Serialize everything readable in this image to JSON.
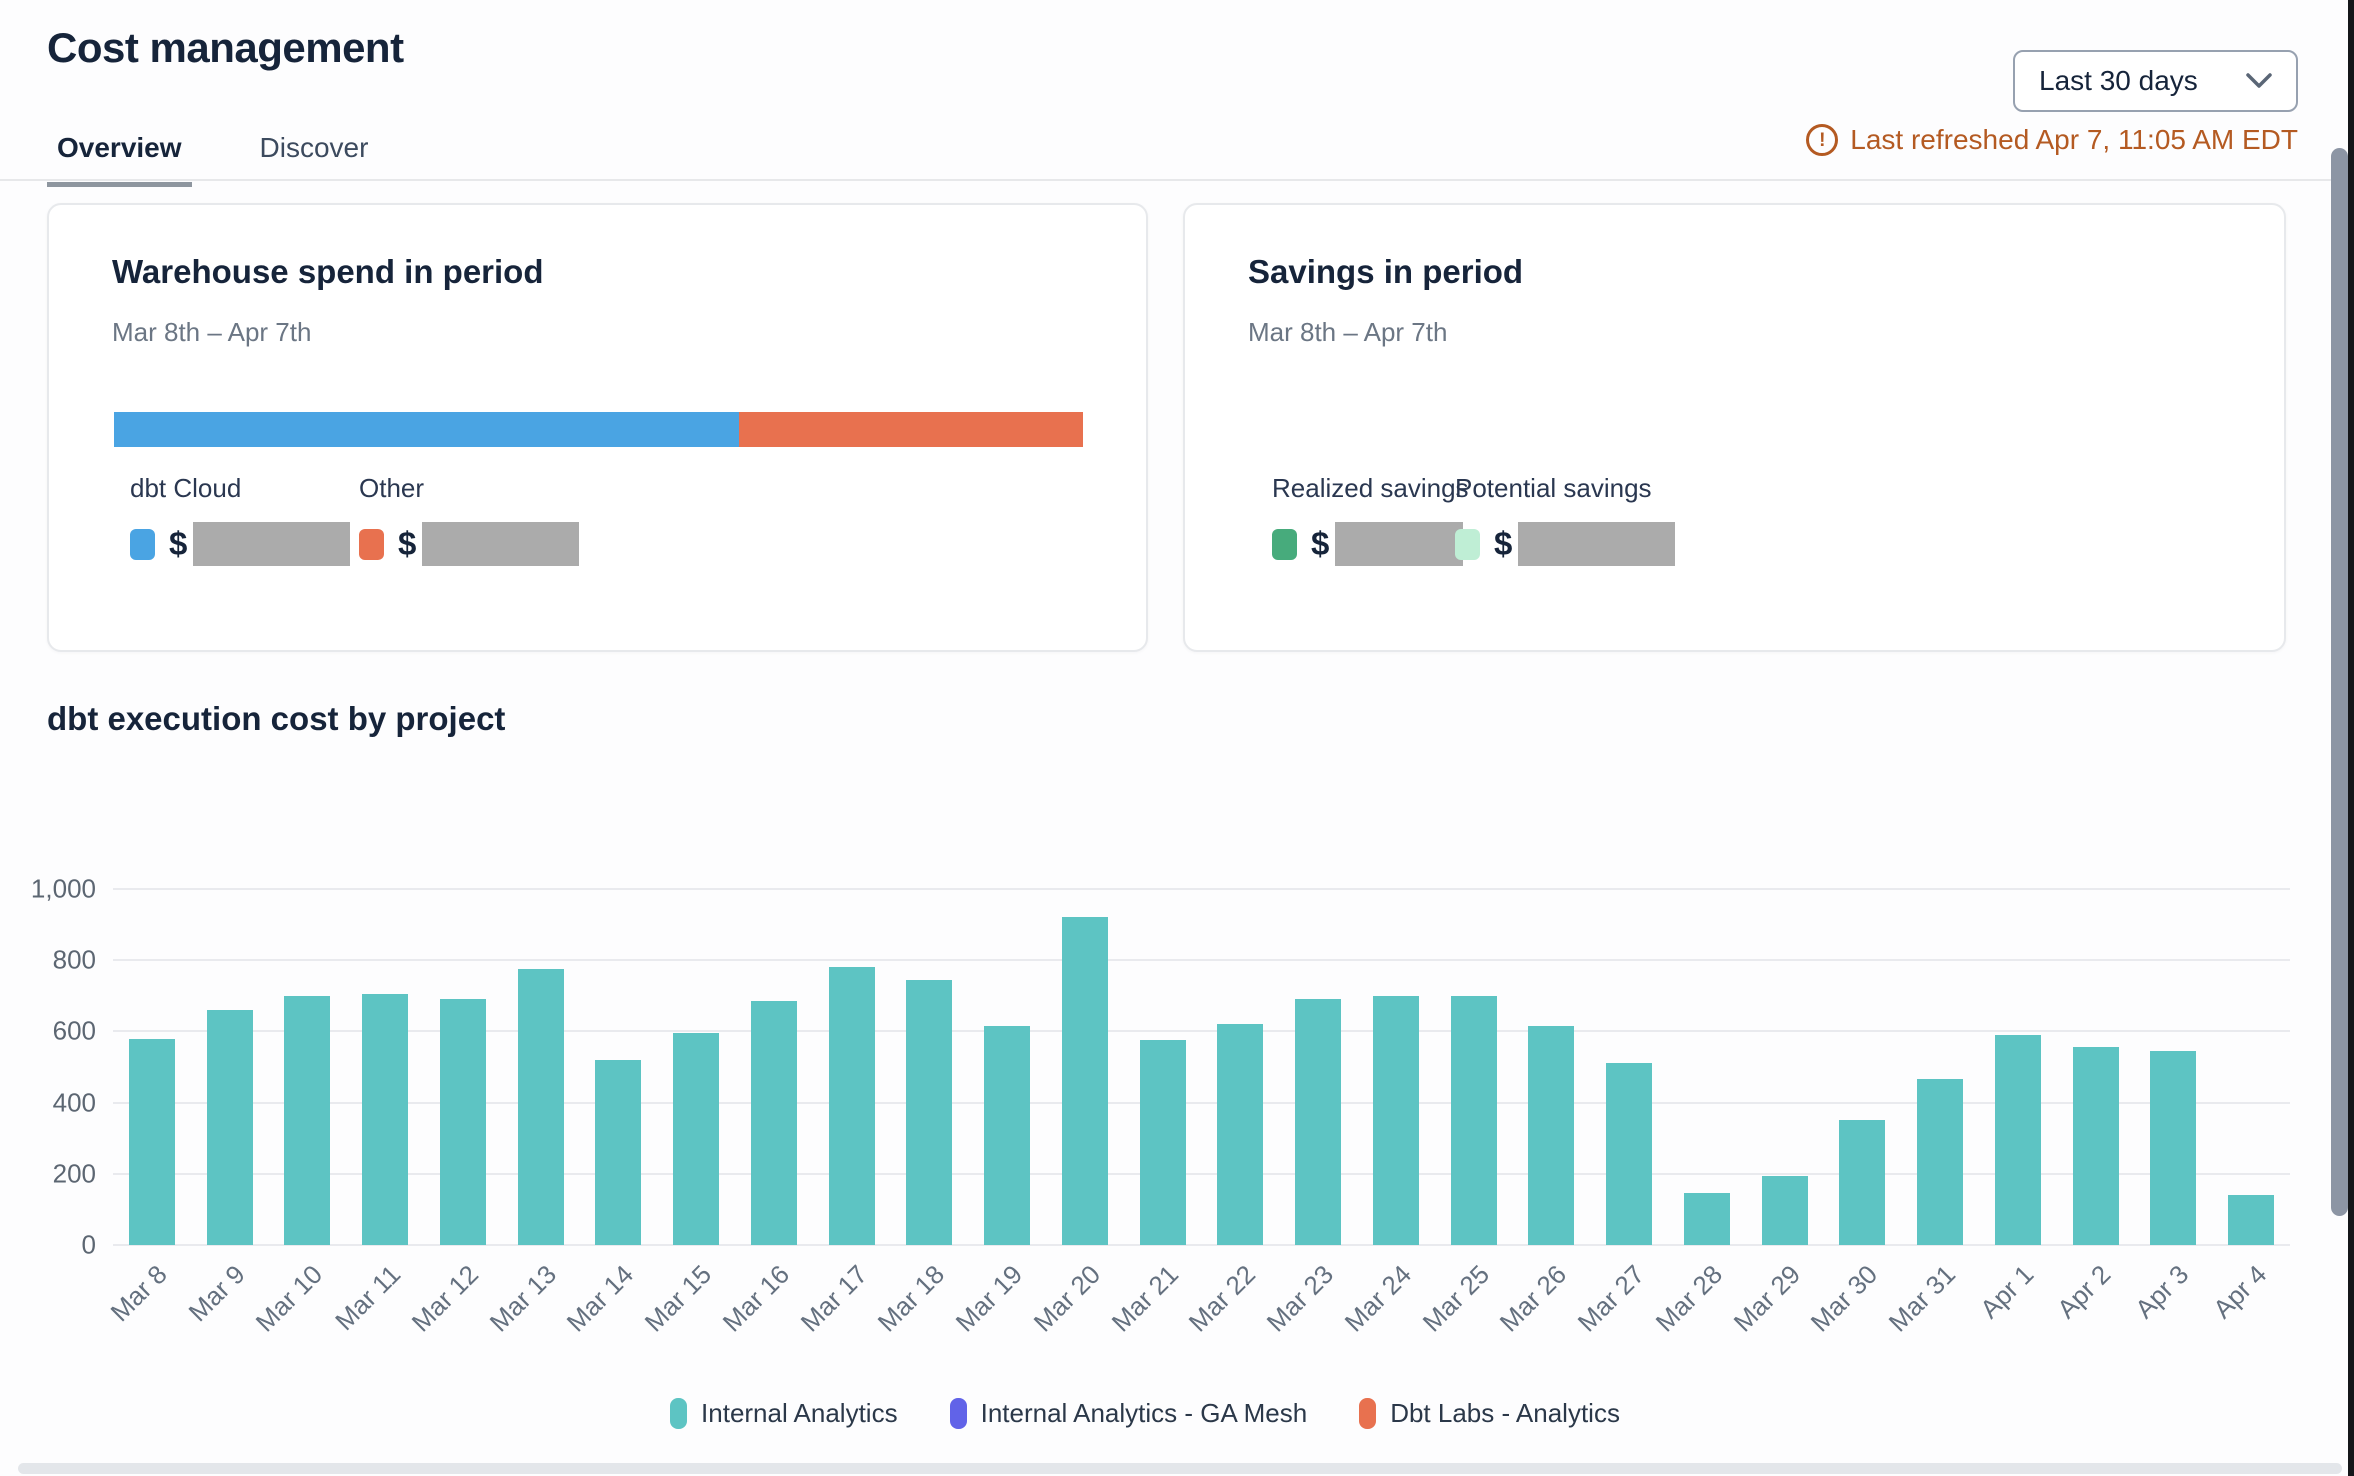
{
  "header": {
    "title": "Cost management",
    "tabs": [
      {
        "label": "Overview",
        "active": true
      },
      {
        "label": "Discover",
        "active": false
      }
    ],
    "date_range": {
      "value": "Last 30 days"
    },
    "last_refreshed": "Last refreshed Apr 7, 11:05 AM EDT",
    "refresh_color": "#b45a22"
  },
  "warehouse_card": {
    "title": "Warehouse spend in period",
    "period": "Mar 8th – Apr 7th",
    "currency_symbol": "$",
    "value_redacted": true,
    "bar_segments": [
      {
        "label": "dbt Cloud",
        "color": "#4aa4e3",
        "percent": 64.5
      },
      {
        "label": "Other",
        "color": "#e8714f",
        "percent": 35.5
      }
    ]
  },
  "savings_card": {
    "title": "Savings in period",
    "period": "Mar 8th – Apr 7th",
    "currency_symbol": "$",
    "value_redacted": true,
    "items": [
      {
        "label": "Realized savings",
        "color": "#47ab7c"
      },
      {
        "label": "Potential savings",
        "color": "#bfeed5"
      }
    ]
  },
  "chart_section": {
    "title": "dbt execution cost by project"
  },
  "chart_data": {
    "type": "bar",
    "title": "dbt execution cost by project",
    "categories": [
      "Mar 8",
      "Mar 9",
      "Mar 10",
      "Mar 11",
      "Mar 12",
      "Mar 13",
      "Mar 14",
      "Mar 15",
      "Mar 16",
      "Mar 17",
      "Mar 18",
      "Mar 19",
      "Mar 20",
      "Mar 21",
      "Mar 22",
      "Mar 23",
      "Mar 24",
      "Mar 25",
      "Mar 26",
      "Mar 27",
      "Mar 28",
      "Mar 29",
      "Mar 30",
      "Mar 31",
      "Apr 1",
      "Apr 2",
      "Apr 3",
      "Apr 4"
    ],
    "series": [
      {
        "name": "Internal Analytics",
        "color": "#5dc4c3",
        "values": [
          580,
          660,
          700,
          705,
          690,
          775,
          520,
          595,
          685,
          780,
          745,
          615,
          920,
          575,
          620,
          690,
          700,
          700,
          615,
          510,
          145,
          195,
          350,
          465,
          590,
          555,
          545,
          140
        ]
      },
      {
        "name": "Internal Analytics - GA Mesh",
        "color": "#6163e8",
        "values": [
          0,
          0,
          0,
          0,
          0,
          0,
          0,
          0,
          0,
          0,
          0,
          0,
          0,
          0,
          0,
          0,
          0,
          0,
          0,
          0,
          0,
          0,
          0,
          0,
          0,
          0,
          0,
          0
        ]
      },
      {
        "name": "Dbt Labs - Analytics",
        "color": "#e8714f",
        "values": [
          0,
          0,
          0,
          0,
          0,
          0,
          0,
          0,
          0,
          0,
          0,
          0,
          0,
          0,
          0,
          0,
          0,
          0,
          0,
          0,
          0,
          0,
          0,
          0,
          0,
          0,
          0,
          0
        ]
      }
    ],
    "ylim": [
      0,
      1000
    ],
    "ytick_labels": [
      "0",
      "200",
      "400",
      "600",
      "800",
      "1,000"
    ],
    "xlabel": "",
    "ylabel": "",
    "grid": true,
    "legend_position": "bottom"
  }
}
